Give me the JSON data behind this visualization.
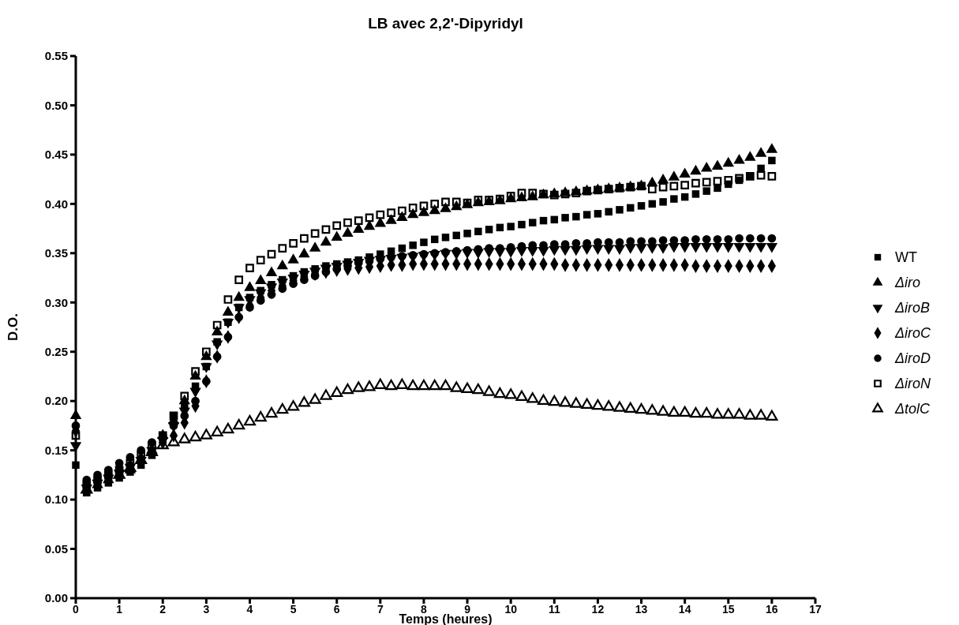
{
  "chart_data": {
    "type": "scatter",
    "title": "LB avec 2,2'-Dipyridyl",
    "xlabel": "Temps  (heures)",
    "ylabel": "D.O.",
    "xlim": [
      0,
      17
    ],
    "xticks": [
      0,
      1,
      2,
      3,
      4,
      5,
      6,
      7,
      8,
      9,
      10,
      11,
      12,
      13,
      14,
      15,
      16,
      17
    ],
    "ylim": [
      0,
      0.55
    ],
    "yticks": [
      {
        "value": 0,
        "label": "0.00"
      },
      {
        "value": 0.05,
        "label": "0.05"
      },
      {
        "value": 0.1,
        "label": "0.10"
      },
      {
        "value": 0.15,
        "label": "0.15"
      },
      {
        "value": 0.2,
        "label": "0.20"
      },
      {
        "value": 0.25,
        "label": "0.25"
      },
      {
        "value": 0.3,
        "label": "0.30"
      },
      {
        "value": 0.35,
        "label": "0.35"
      },
      {
        "value": 0.4,
        "label": "0.40"
      },
      {
        "value": 0.45,
        "label": "0.45"
      },
      {
        "value": 0.5,
        "label": "0.50"
      },
      {
        "value": 0.55,
        "label": "0.55"
      }
    ],
    "grid": false,
    "legend": "right",
    "x": [
      0,
      0.25,
      0.5,
      0.75,
      1,
      1.25,
      1.5,
      1.75,
      2,
      2.25,
      2.5,
      2.75,
      3,
      3.25,
      3.5,
      3.75,
      4,
      4.25,
      4.5,
      4.75,
      5,
      5.25,
      5.5,
      5.75,
      6,
      6.25,
      6.5,
      6.75,
      7,
      7.25,
      7.5,
      7.75,
      8,
      8.25,
      8.5,
      8.75,
      9,
      9.25,
      9.5,
      9.75,
      10,
      10.25,
      10.5,
      10.75,
      11,
      11.25,
      11.5,
      11.75,
      12,
      12.25,
      12.5,
      12.75,
      13,
      13.25,
      13.5,
      13.75,
      14,
      14.25,
      14.5,
      14.75,
      15,
      15.25,
      15.5,
      15.75,
      16
    ],
    "series": [
      {
        "name": "WT",
        "color": "#000000",
        "marker": "square",
        "values": [
          0.135,
          0.107,
          0.112,
          0.117,
          0.122,
          0.128,
          0.135,
          0.145,
          0.16,
          0.185,
          0.195,
          0.215,
          0.235,
          0.26,
          0.28,
          0.295,
          0.305,
          0.312,
          0.318,
          0.323,
          0.327,
          0.331,
          0.334,
          0.337,
          0.339,
          0.341,
          0.343,
          0.346,
          0.349,
          0.352,
          0.355,
          0.358,
          0.361,
          0.364,
          0.366,
          0.368,
          0.37,
          0.372,
          0.374,
          0.376,
          0.377,
          0.379,
          0.381,
          0.383,
          0.384,
          0.386,
          0.387,
          0.389,
          0.39,
          0.392,
          0.394,
          0.396,
          0.398,
          0.4,
          0.402,
          0.405,
          0.407,
          0.41,
          0.413,
          0.416,
          0.42,
          0.424,
          0.428,
          0.436,
          0.444
        ]
      },
      {
        "name": "Δiro",
        "color": "#000000",
        "marker": "triangle",
        "values": [
          0.185,
          null,
          0.115,
          0.12,
          null,
          0.13,
          null,
          0.15,
          0.165,
          0.18,
          0.2,
          0.225,
          0.245,
          0.27,
          0.29,
          0.305,
          0.315,
          0.322,
          0.33,
          0.337,
          0.343,
          0.349,
          0.355,
          0.361,
          0.366,
          0.37,
          0.374,
          0.377,
          0.38,
          0.383,
          0.386,
          0.389,
          0.391,
          0.393,
          0.395,
          0.397,
          0.399,
          0.401,
          0.402,
          0.403,
          0.405,
          0.406,
          0.407,
          0.409,
          0.41,
          0.411,
          0.412,
          0.413,
          0.414,
          0.415,
          0.416,
          0.417,
          0.418,
          0.421,
          0.424,
          0.427,
          0.43,
          0.433,
          0.436,
          0.438,
          0.441,
          0.444,
          0.447,
          0.451,
          0.455
        ]
      },
      {
        "name": "ΔiroB",
        "color": "#000000",
        "marker": "triangle-down",
        "values": [
          0.155,
          0.112,
          0.117,
          0.122,
          0.127,
          0.133,
          0.14,
          0.15,
          0.16,
          0.175,
          0.19,
          0.21,
          0.235,
          0.258,
          0.28,
          0.295,
          0.303,
          0.31,
          0.316,
          0.321,
          0.325,
          0.329,
          0.332,
          0.335,
          0.337,
          0.339,
          0.341,
          0.343,
          0.344,
          0.345,
          0.346,
          0.347,
          0.348,
          0.349,
          0.35,
          0.35,
          0.351,
          0.351,
          0.352,
          0.352,
          0.352,
          0.353,
          0.353,
          0.353,
          0.354,
          0.354,
          0.354,
          0.355,
          0.355,
          0.355,
          0.355,
          0.356,
          0.356,
          0.356,
          0.356,
          0.357,
          0.357,
          0.357,
          0.357,
          0.357,
          0.357,
          0.357,
          0.357,
          0.357,
          0.357
        ]
      },
      {
        "name": "ΔiroC",
        "color": "#000000",
        "marker": "diamond",
        "values": [
          0.17,
          0.115,
          0.12,
          0.125,
          0.13,
          0.135,
          0.142,
          0.15,
          0.158,
          0.165,
          0.178,
          0.195,
          0.22,
          0.245,
          0.265,
          0.285,
          0.297,
          0.305,
          0.312,
          0.317,
          0.322,
          0.326,
          0.329,
          0.331,
          0.333,
          0.334,
          0.335,
          0.336,
          0.337,
          0.338,
          0.338,
          0.339,
          0.339,
          0.339,
          0.339,
          0.339,
          0.339,
          0.339,
          0.339,
          0.339,
          0.339,
          0.339,
          0.339,
          0.339,
          0.339,
          0.338,
          0.338,
          0.338,
          0.338,
          0.338,
          0.338,
          0.338,
          0.338,
          0.338,
          0.338,
          0.338,
          0.338,
          0.337,
          0.337,
          0.337,
          0.337,
          0.337,
          0.337,
          0.337,
          0.337
        ]
      },
      {
        "name": "ΔiroD",
        "color": "#000000",
        "marker": "circle",
        "values": [
          0.175,
          0.12,
          0.125,
          0.13,
          0.137,
          0.143,
          0.15,
          0.158,
          0.165,
          0.175,
          0.185,
          0.2,
          0.22,
          0.245,
          0.265,
          0.285,
          0.295,
          0.302,
          0.308,
          0.314,
          0.319,
          0.323,
          0.327,
          0.331,
          0.334,
          0.337,
          0.34,
          0.342,
          0.344,
          0.346,
          0.347,
          0.348,
          0.349,
          0.35,
          0.351,
          0.352,
          0.353,
          0.354,
          0.355,
          0.355,
          0.356,
          0.357,
          0.358,
          0.358,
          0.359,
          0.359,
          0.36,
          0.36,
          0.361,
          0.361,
          0.361,
          0.362,
          0.362,
          0.362,
          0.363,
          0.363,
          0.363,
          0.364,
          0.364,
          0.364,
          0.364,
          0.365,
          0.365,
          0.365,
          0.365
        ]
      },
      {
        "name": "ΔiroN",
        "color": "#000000",
        "marker": "square-open",
        "values": [
          0.165,
          0.115,
          0.12,
          0.125,
          0.13,
          0.137,
          0.145,
          0.155,
          0.165,
          0.185,
          0.205,
          0.23,
          0.25,
          0.277,
          0.303,
          0.323,
          0.335,
          0.343,
          0.349,
          0.355,
          0.36,
          0.365,
          0.37,
          0.374,
          0.378,
          0.381,
          0.383,
          0.386,
          0.389,
          0.391,
          0.393,
          0.396,
          0.398,
          0.4,
          0.402,
          0.402,
          0.401,
          0.404,
          0.404,
          0.405,
          0.408,
          0.411,
          0.411,
          0.41,
          0.409,
          0.41,
          0.411,
          0.413,
          0.414,
          0.415,
          0.416,
          0.417,
          0.418,
          0.415,
          0.417,
          0.418,
          0.419,
          0.421,
          0.422,
          0.423,
          0.424,
          0.426,
          0.428,
          0.429,
          0.428
        ]
      },
      {
        "name": "ΔtolC",
        "color": "#000000",
        "marker": "triangle-open",
        "values": [
          null,
          0.11,
          null,
          null,
          0.125,
          0.132,
          0.14,
          0.148,
          0.155,
          0.158,
          0.161,
          0.163,
          0.165,
          0.168,
          0.171,
          0.175,
          0.179,
          0.183,
          0.187,
          0.191,
          0.194,
          0.198,
          0.201,
          0.205,
          0.208,
          0.211,
          0.213,
          0.214,
          0.216,
          0.215,
          0.216,
          0.215,
          0.215,
          0.215,
          0.215,
          0.213,
          0.212,
          0.211,
          0.209,
          0.207,
          0.206,
          0.204,
          0.202,
          0.2,
          0.199,
          0.198,
          0.197,
          0.196,
          0.195,
          0.194,
          0.193,
          0.192,
          0.191,
          0.19,
          0.189,
          0.188,
          0.188,
          0.187,
          0.187,
          0.186,
          0.186,
          0.186,
          0.185,
          0.185,
          0.184
        ]
      }
    ]
  }
}
